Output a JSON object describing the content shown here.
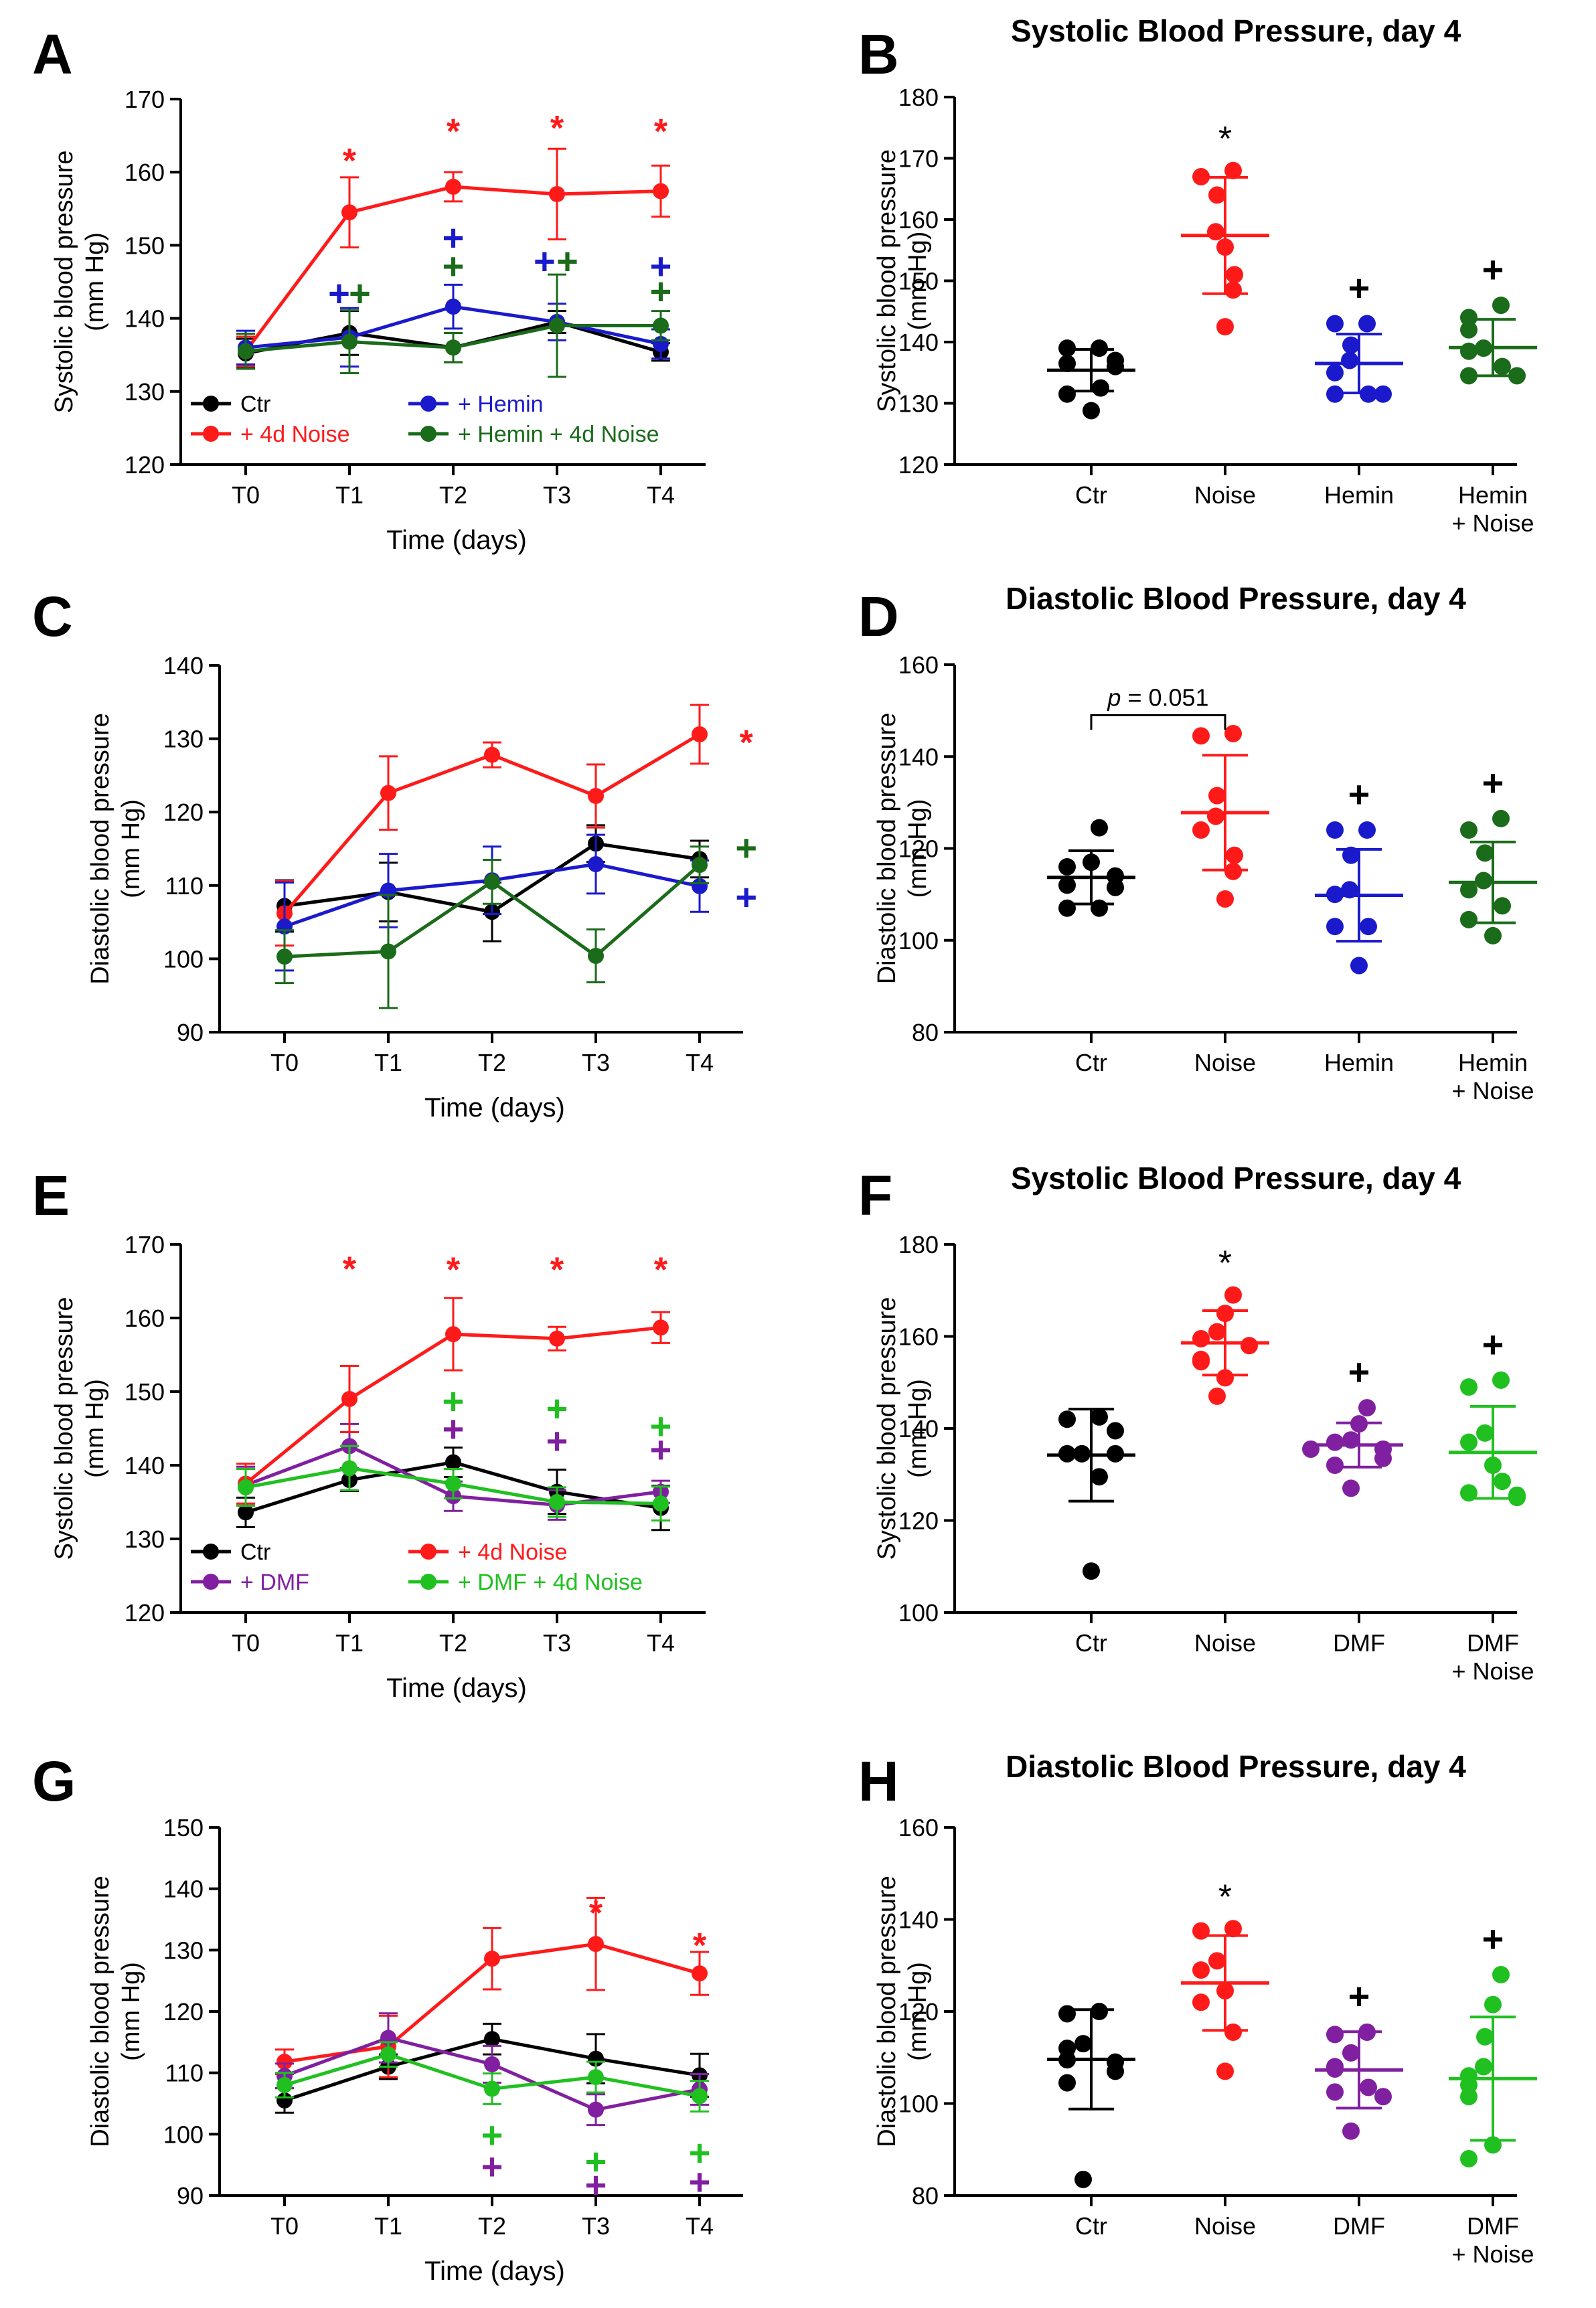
{
  "chart_data": [
    {
      "panel": "A",
      "type": "line",
      "title": "",
      "xlabel": "Time (days)",
      "ylabel": [
        "Systolic blood pressure",
        "(mm Hg)"
      ],
      "categories": [
        "T0",
        "T1",
        "T2",
        "T3",
        "T4"
      ],
      "ylim": [
        120,
        170
      ],
      "yticks": [
        120,
        130,
        140,
        150,
        160,
        170
      ],
      "legend": {
        "placement": "bottom-left",
        "columns": [
          [
            "Ctr",
            "+ 4d Noise"
          ],
          [
            "+ Hemin",
            "+ Hemin + 4d Noise"
          ]
        ]
      },
      "series": [
        {
          "name": "Ctr",
          "color": "#000000",
          "values": [
            135.2,
            138,
            136,
            139.5,
            135.4
          ],
          "err": [
            2,
            3,
            2,
            1.5,
            1.2
          ]
        },
        {
          "name": "+ 4d Noise",
          "color": "#ff1a1a",
          "values": [
            135.5,
            154.5,
            158,
            157,
            157.4
          ],
          "err": [
            2,
            4.8,
            2,
            6.2,
            3.5
          ]
        },
        {
          "name": "+ Hemin",
          "color": "#1a1acc",
          "values": [
            136,
            137.4,
            141.6,
            139.5,
            136.5
          ],
          "err": [
            2.3,
            4,
            3,
            2.5,
            2
          ]
        },
        {
          "name": "+ Hemin + 4d Noise",
          "color": "#1a6b1a",
          "values": [
            135.5,
            136.8,
            136,
            139,
            139
          ],
          "err": [
            2.4,
            4.3,
            2,
            7,
            2
          ]
        }
      ],
      "annotations": [
        {
          "text": "*",
          "x": 1,
          "y": 162.5,
          "color": "#ff1a1a"
        },
        {
          "text": "*",
          "x": 2,
          "y": 166.5,
          "color": "#ff1a1a"
        },
        {
          "text": "*",
          "x": 3,
          "y": 167,
          "color": "#ff1a1a"
        },
        {
          "text": "*",
          "x": 4,
          "y": 166.5,
          "color": "#ff1a1a"
        },
        {
          "text": "+",
          "x": 0.9,
          "y": 143.3,
          "color": "#1a1acc"
        },
        {
          "text": "+",
          "x": 1.1,
          "y": 143.3,
          "color": "#1a6b1a"
        },
        {
          "text": "+",
          "x": 2,
          "y": 150.9,
          "color": "#1a1acc"
        },
        {
          "text": "+",
          "x": 2,
          "y": 147,
          "color": "#1a6b1a"
        },
        {
          "text": "+",
          "x": 2.88,
          "y": 147.7,
          "color": "#1a1acc"
        },
        {
          "text": "+",
          "x": 3.1,
          "y": 147.7,
          "color": "#1a6b1a"
        },
        {
          "text": "+",
          "x": 4,
          "y": 147,
          "color": "#1a1acc"
        },
        {
          "text": "+",
          "x": 4,
          "y": 143.6,
          "color": "#1a6b1a"
        }
      ]
    },
    {
      "panel": "B",
      "type": "scatter",
      "title": "Systolic Blood Pressure, day 4",
      "xlabel": "",
      "ylabel": [
        "Systolic blood pressure",
        "(mm Hg)"
      ],
      "categories": [
        [
          "Ctr"
        ],
        [
          "Noise"
        ],
        [
          "Hemin"
        ],
        [
          "Hemin",
          "+ Noise"
        ]
      ],
      "ylim": [
        120,
        180
      ],
      "yticks": [
        120,
        130,
        140,
        150,
        160,
        170,
        180
      ],
      "groups": [
        {
          "name": "Ctr",
          "color": "#000000",
          "mean": 135.4,
          "sd": 3.4,
          "points": [
            139,
            139,
            137,
            136.5,
            136,
            132.5,
            131.5,
            128.8
          ],
          "mark": ""
        },
        {
          "name": "Noise",
          "color": "#ff1a1a",
          "mean": 157.4,
          "sd": 9.5,
          "points": [
            168,
            167,
            164,
            158,
            155.5,
            151,
            148.5,
            142.5
          ],
          "mark": "*"
        },
        {
          "name": "Hemin",
          "color": "#1a1acc",
          "mean": 136.5,
          "sd": 4.8,
          "points": [
            143,
            143,
            139.5,
            137,
            135,
            131.5,
            131.5,
            131.5
          ],
          "mark": "+"
        },
        {
          "name": "Hemin + Noise",
          "color": "#1a6b1a",
          "mean": 139.1,
          "sd": 4.6,
          "points": [
            146,
            144,
            142,
            139,
            138.5,
            136,
            134.5,
            134.5
          ],
          "mark": "+"
        }
      ]
    },
    {
      "panel": "C",
      "type": "line",
      "title": "",
      "xlabel": "Time (days)",
      "ylabel": [
        "Diastolic blood pressure",
        "(mm Hg)"
      ],
      "categories": [
        "T0",
        "T1",
        "T2",
        "T3",
        "T4"
      ],
      "ylim": [
        90,
        140
      ],
      "yticks": [
        90,
        100,
        110,
        120,
        130,
        140
      ],
      "series": [
        {
          "name": "Ctr",
          "color": "#000000",
          "values": [
            107.2,
            109.1,
            106.4,
            115.7,
            113.6
          ],
          "err": [
            3.5,
            4,
            4,
            2.5,
            2.5
          ]
        },
        {
          "name": "+ 4d Noise",
          "color": "#ff1a1a",
          "values": [
            106.2,
            122.6,
            127.8,
            122.2,
            130.6
          ],
          "err": [
            4.4,
            5,
            1.7,
            4.3,
            4
          ]
        },
        {
          "name": "+ Hemin",
          "color": "#1a1acc",
          "values": [
            104.4,
            109.3,
            110.7,
            112.9,
            109.9
          ],
          "err": [
            6,
            5,
            4.6,
            4,
            3.5
          ]
        },
        {
          "name": "+ Hemin + 4d Noise",
          "color": "#1a6b1a",
          "values": [
            100.3,
            101,
            110.5,
            100.4,
            112.8
          ],
          "err": [
            3.6,
            7.7,
            3,
            3.6,
            2.5
          ]
        }
      ],
      "annotations": [
        {
          "text": "*",
          "x": 4.45,
          "y": 130.4,
          "color": "#ff1a1a"
        },
        {
          "text": "+",
          "x": 4.45,
          "y": 115,
          "color": "#1a6b1a"
        },
        {
          "text": "+",
          "x": 4.45,
          "y": 108.3,
          "color": "#1a1acc"
        }
      ]
    },
    {
      "panel": "D",
      "type": "scatter",
      "title": "Diastolic Blood Pressure, day 4",
      "xlabel": "",
      "ylabel": [
        "Diastolic blood pressure",
        "(mm Hg)"
      ],
      "categories": [
        [
          "Ctr"
        ],
        [
          "Noise"
        ],
        [
          "Hemin"
        ],
        [
          "Hemin",
          "+ Noise"
        ]
      ],
      "ylim": [
        80,
        160
      ],
      "yticks": [
        80,
        100,
        120,
        140,
        160
      ],
      "bracket": {
        "from": 0,
        "to": 1,
        "y": 149,
        "label": "p = 0.051"
      },
      "groups": [
        {
          "name": "Ctr",
          "color": "#000000",
          "mean": 113.7,
          "sd": 5.8,
          "points": [
            124.5,
            117,
            116,
            114,
            112,
            111.5,
            107,
            107
          ],
          "mark": ""
        },
        {
          "name": "Noise",
          "color": "#ff1a1a",
          "mean": 127.8,
          "sd": 12.5,
          "points": [
            145,
            144.5,
            131.5,
            127,
            124,
            118.5,
            115,
            109
          ],
          "mark": ""
        },
        {
          "name": "Hemin",
          "color": "#1a1acc",
          "mean": 109.8,
          "sd": 10,
          "points": [
            124,
            124,
            118.5,
            111,
            110,
            103,
            103,
            94.5
          ],
          "mark": "+"
        },
        {
          "name": "Hemin + Noise",
          "color": "#1a6b1a",
          "mean": 112.6,
          "sd": 8.8,
          "points": [
            126.5,
            124,
            119,
            113,
            111,
            107.5,
            104.5,
            101
          ],
          "mark": "+"
        }
      ]
    },
    {
      "panel": "E",
      "type": "line",
      "title": "",
      "xlabel": "Time (days)",
      "ylabel": [
        "Systolic blood pressure",
        "(mm Hg)"
      ],
      "categories": [
        "T0",
        "T1",
        "T2",
        "T3",
        "T4"
      ],
      "ylim": [
        120,
        170
      ],
      "yticks": [
        120,
        130,
        140,
        150,
        160,
        170
      ],
      "legend": {
        "placement": "bottom-left",
        "columns": [
          [
            "Ctr",
            "+ DMF"
          ],
          [
            "+ 4d Noise",
            "+ DMF + 4d Noise"
          ]
        ]
      },
      "series": [
        {
          "name": "Ctr",
          "color": "#000000",
          "values": [
            133.6,
            138,
            140.4,
            136.4,
            134.2
          ],
          "err": [
            2,
            1.5,
            2,
            3,
            3
          ]
        },
        {
          "name": "+ DMF",
          "color": "#8020a0",
          "values": [
            137.3,
            142.6,
            135.8,
            134.6,
            136.4
          ],
          "err": [
            2.5,
            3,
            2,
            2,
            1.5
          ]
        },
        {
          "name": "+ 4d Noise",
          "color": "#ff1a1a",
          "values": [
            137.5,
            149,
            157.8,
            157.2,
            158.7
          ],
          "err": [
            2.7,
            4.5,
            4.9,
            1.6,
            2.1
          ]
        },
        {
          "name": "+ DMF + 4d Noise",
          "color": "#20c020",
          "values": [
            137,
            139.6,
            137.5,
            135,
            134.8
          ],
          "err": [
            2.5,
            3,
            2,
            2,
            2.3
          ]
        }
      ],
      "annotations": [
        {
          "text": "*",
          "x": 1,
          "y": 167.6,
          "color": "#ff1a1a"
        },
        {
          "text": "*",
          "x": 2,
          "y": 167.5,
          "color": "#ff1a1a"
        },
        {
          "text": "*",
          "x": 3,
          "y": 167.5,
          "color": "#ff1a1a"
        },
        {
          "text": "*",
          "x": 4,
          "y": 167.5,
          "color": "#ff1a1a"
        },
        {
          "text": "+",
          "x": 2,
          "y": 148.6,
          "color": "#20c020"
        },
        {
          "text": "+",
          "x": 2,
          "y": 144.8,
          "color": "#8020a0"
        },
        {
          "text": "+",
          "x": 3,
          "y": 147.6,
          "color": "#20c020"
        },
        {
          "text": "+",
          "x": 3,
          "y": 143.2,
          "color": "#8020a0"
        },
        {
          "text": "+",
          "x": 4,
          "y": 145.2,
          "color": "#20c020"
        },
        {
          "text": "+",
          "x": 4,
          "y": 142,
          "color": "#8020a0"
        }
      ]
    },
    {
      "panel": "F",
      "type": "scatter",
      "title": "Systolic Blood Pressure, day 4",
      "xlabel": "",
      "ylabel": [
        "Systolic blood pressure",
        "(mm Hg)"
      ],
      "categories": [
        [
          "Ctr"
        ],
        [
          "Noise"
        ],
        [
          "DMF"
        ],
        [
          "DMF",
          "+ Noise"
        ]
      ],
      "ylim": [
        100,
        180
      ],
      "yticks": [
        100,
        120,
        140,
        160,
        180
      ],
      "groups": [
        {
          "name": "Ctr",
          "color": "#000000",
          "mean": 134.2,
          "sd": 10,
          "points": [
            142.5,
            142,
            139.5,
            134.5,
            134.5,
            134.5,
            129.5,
            109
          ],
          "mark": ""
        },
        {
          "name": "Noise",
          "color": "#ff1a1a",
          "mean": 158.6,
          "sd": 7,
          "points": [
            169,
            165,
            161,
            159.5,
            158,
            155,
            154.5,
            151,
            147
          ],
          "mark": "*"
        },
        {
          "name": "DMF",
          "color": "#8020a0",
          "mean": 136.4,
          "sd": 4.8,
          "points": [
            144.5,
            141,
            137.5,
            137,
            135.5,
            135.5,
            133.5,
            132,
            127
          ],
          "mark": "+"
        },
        {
          "name": "DMF + Noise",
          "color": "#20c020",
          "mean": 134.8,
          "sd": 10,
          "points": [
            150.5,
            149,
            139,
            137,
            132,
            128.5,
            126,
            125.5,
            125
          ],
          "mark": "+"
        }
      ]
    },
    {
      "panel": "G",
      "type": "line",
      "title": "",
      "xlabel": "Time (days)",
      "ylabel": [
        "Diastolic blood pressure",
        "(mm Hg)"
      ],
      "categories": [
        "T0",
        "T1",
        "T2",
        "T3",
        "T4"
      ],
      "ylim": [
        90,
        150
      ],
      "yticks": [
        90,
        100,
        110,
        120,
        130,
        140,
        150
      ],
      "series": [
        {
          "name": "Ctr",
          "color": "#000000",
          "values": [
            105.5,
            111,
            115.5,
            112.3,
            109.6
          ],
          "err": [
            2,
            2,
            2.5,
            4,
            3.5
          ]
        },
        {
          "name": "+ 4d Noise",
          "color": "#ff1a1a",
          "values": [
            111.8,
            114.3,
            128.6,
            131,
            126.2
          ],
          "err": [
            2,
            5,
            5,
            7.5,
            3.5
          ]
        },
        {
          "name": "+ DMF",
          "color": "#8020a0",
          "values": [
            109.5,
            115.7,
            111.4,
            104,
            107.3
          ],
          "err": [
            2,
            4,
            3,
            2.5,
            2.5
          ]
        },
        {
          "name": "+ DMF + 4d Noise",
          "color": "#20c020",
          "values": [
            108,
            113,
            107.4,
            109.3,
            106.2
          ],
          "err": [
            2,
            2,
            2.5,
            2.5,
            2.5
          ]
        }
      ],
      "annotations": [
        {
          "text": "*",
          "x": 3,
          "y": 137.2,
          "color": "#ff1a1a"
        },
        {
          "text": "*",
          "x": 4,
          "y": 131.9,
          "color": "#ff1a1a"
        },
        {
          "text": "+",
          "x": 2,
          "y": 99.7,
          "color": "#20c020"
        },
        {
          "text": "+",
          "x": 2,
          "y": 94.6,
          "color": "#8020a0"
        },
        {
          "text": "+",
          "x": 3,
          "y": 95.4,
          "color": "#20c020"
        },
        {
          "text": "+",
          "x": 3,
          "y": 91.6,
          "color": "#8020a0"
        },
        {
          "text": "+",
          "x": 4,
          "y": 96.8,
          "color": "#20c020"
        },
        {
          "text": "+",
          "x": 4,
          "y": 92.1,
          "color": "#8020a0"
        }
      ]
    },
    {
      "panel": "H",
      "type": "scatter",
      "title": "Diastolic Blood Pressure, day 4",
      "xlabel": "",
      "ylabel": [
        "Diastolic blood pressure",
        "(mm Hg)"
      ],
      "categories": [
        [
          "Ctr"
        ],
        [
          "Noise"
        ],
        [
          "DMF"
        ],
        [
          "DMF",
          "+ Noise"
        ]
      ],
      "ylim": [
        80,
        160
      ],
      "yticks": [
        80,
        100,
        120,
        140,
        160
      ],
      "groups": [
        {
          "name": "Ctr",
          "color": "#000000",
          "mean": 109.6,
          "sd": 10.8,
          "points": [
            120,
            119.5,
            113,
            112,
            109.5,
            109,
            107,
            104.5,
            83.5
          ],
          "mark": ""
        },
        {
          "name": "Noise",
          "color": "#ff1a1a",
          "mean": 126.2,
          "sd": 10.3,
          "points": [
            138,
            137.5,
            131,
            129,
            124.5,
            122,
            115.5,
            107
          ],
          "mark": "*"
        },
        {
          "name": "DMF",
          "color": "#8020a0",
          "mean": 107.3,
          "sd": 8.3,
          "points": [
            115.5,
            115,
            111,
            108,
            107.5,
            103.5,
            102.5,
            101.5,
            94
          ],
          "mark": "+"
        },
        {
          "name": "DMF + Noise",
          "color": "#20c020",
          "mean": 105.4,
          "sd": 13.4,
          "points": [
            128,
            121.5,
            114.5,
            108,
            106,
            104,
            101.5,
            91,
            88
          ],
          "mark": "+"
        }
      ]
    }
  ]
}
